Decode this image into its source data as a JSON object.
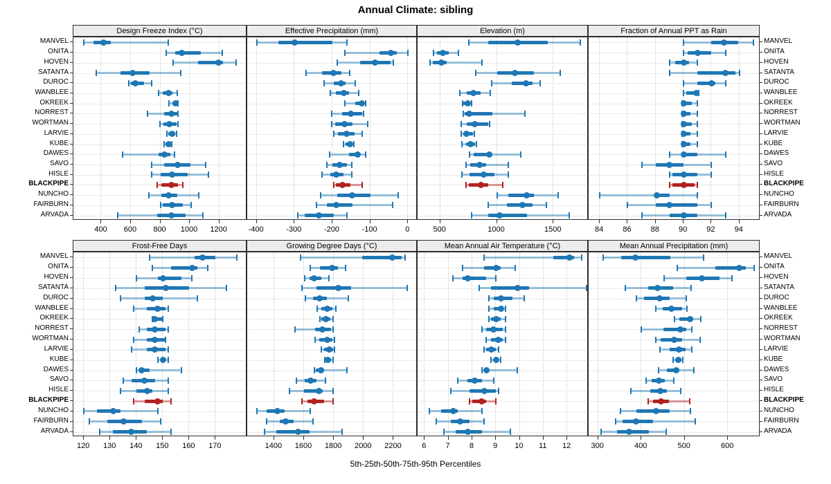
{
  "title": "Annual Climate: sibling",
  "caption": "5th-25th-50th-75th-95th Percentiles",
  "colors": {
    "series": "#1f77b4",
    "highlight": "#b22222",
    "grid": "#c9c9c9",
    "strip_bg": "#ececec",
    "border": "#2b2b2b"
  },
  "stations": [
    "MANVEL",
    "ONITA",
    "HOVEN",
    "SATANTA",
    "DUROC",
    "WANBLEE",
    "OKREEK",
    "NORREST",
    "WORTMAN",
    "LARVIE",
    "KUBE",
    "DAWES",
    "SAVO",
    "HISLE",
    "BLACKPIPE",
    "NUNCHO",
    "FAIRBURN",
    "ARVADA"
  ],
  "highlight_station": "BLACKPIPE",
  "chart_data": [
    {
      "type": "interval",
      "title": "Design Freeze Index (°C)",
      "percentiles": [
        5,
        25,
        50,
        75,
        95
      ],
      "xlim": [
        210,
        1390
      ],
      "ticks": [
        400,
        600,
        800,
        1000,
        1200
      ],
      "values": [
        [
          282,
          345,
          413,
          463,
          855
        ],
        [
          839,
          902,
          946,
          1074,
          1220
        ],
        [
          889,
          1056,
          1194,
          1224,
          1315
        ],
        [
          366,
          530,
          612,
          729,
          938
        ],
        [
          585,
          600,
          629,
          690,
          740
        ],
        [
          790,
          815,
          857,
          880,
          916
        ],
        [
          858,
          882,
          902,
          917,
          922
        ],
        [
          711,
          824,
          874,
          913,
          918
        ],
        [
          797,
          820,
          863,
          910,
          921
        ],
        [
          847,
          856,
          878,
          902,
          910
        ],
        [
          828,
          835,
          855,
          871,
          878
        ],
        [
          546,
          786,
          828,
          868,
          897
        ],
        [
          740,
          824,
          918,
          1004,
          1106
        ],
        [
          740,
          800,
          878,
          988,
          1126
        ],
        [
          781,
          808,
          874,
          918,
          952
        ],
        [
          722,
          808,
          858,
          913,
          1063
        ],
        [
          803,
          816,
          882,
          954,
          1007
        ],
        [
          510,
          781,
          874,
          973,
          1090
        ]
      ]
    },
    {
      "type": "interval",
      "title": "Effective Precipitation (mm)",
      "percentiles": [
        5,
        25,
        50,
        75,
        95
      ],
      "xlim": [
        -425,
        25
      ],
      "ticks": [
        -400,
        -300,
        -200,
        -100,
        0
      ],
      "values": [
        [
          -400,
          -343,
          -299,
          -200,
          -161
        ],
        [
          -167,
          -76,
          -45,
          -30,
          0
        ],
        [
          -188,
          -126,
          -87,
          -47,
          -39
        ],
        [
          -269,
          -228,
          -197,
          -177,
          -154
        ],
        [
          -222,
          -196,
          -177,
          -165,
          -139
        ],
        [
          -206,
          -190,
          -170,
          -156,
          -130
        ],
        [
          -167,
          -140,
          -123,
          -116,
          -113
        ],
        [
          -202,
          -174,
          -151,
          -122,
          -117
        ],
        [
          -202,
          -193,
          -168,
          -147,
          -107
        ],
        [
          -196,
          -185,
          -163,
          -142,
          -121
        ],
        [
          -171,
          -166,
          -154,
          -147,
          -144
        ],
        [
          -208,
          -156,
          -133,
          -126,
          -112
        ],
        [
          -214,
          -200,
          -180,
          -162,
          -148
        ],
        [
          -228,
          -205,
          -190,
          -171,
          -148
        ],
        [
          -196,
          -191,
          -173,
          -153,
          -121
        ],
        [
          -232,
          -187,
          -147,
          -100,
          -26
        ],
        [
          -242,
          -215,
          -190,
          -147,
          -40
        ],
        [
          -291,
          -273,
          -236,
          -196,
          -161
        ]
      ]
    },
    {
      "type": "interval",
      "title": "Elevation (m)",
      "percentiles": [
        5,
        25,
        50,
        75,
        95
      ],
      "xlim": [
        300,
        1810
      ],
      "ticks": [
        500,
        1000,
        1500
      ],
      "values": [
        [
          751,
          925,
          1186,
          1449,
          1735
        ],
        [
          443,
          470,
          524,
          575,
          662
        ],
        [
          409,
          433,
          508,
          559,
          868
        ],
        [
          812,
          1000,
          1156,
          1328,
          1557
        ],
        [
          955,
          1132,
          1259,
          1314,
          1385
        ],
        [
          670,
          731,
          793,
          854,
          943
        ],
        [
          700,
          706,
          743,
          767,
          777
        ],
        [
          702,
          713,
          757,
          963,
          1247
        ],
        [
          686,
          737,
          804,
          923,
          933
        ],
        [
          686,
          706,
          730,
          790,
          804
        ],
        [
          692,
          727,
          770,
          808,
          820
        ],
        [
          760,
          795,
          930,
          962,
          1208
        ],
        [
          727,
          763,
          850,
          905,
          1103
        ],
        [
          692,
          757,
          885,
          980,
          1101
        ],
        [
          727,
          753,
          858,
          925,
          1053
        ],
        [
          1002,
          1103,
          1263,
          1330,
          1542
        ],
        [
          925,
          1087,
          1229,
          1316,
          1435
        ],
        [
          777,
          921,
          1026,
          1265,
          1639
        ]
      ]
    },
    {
      "type": "interval",
      "title": "Fraction of Annual PPT as Rain",
      "percentiles": [
        5,
        25,
        50,
        75,
        95
      ],
      "xlim": [
        83.2,
        95.5
      ],
      "ticks": [
        84,
        86,
        88,
        90,
        92,
        94
      ],
      "values": [
        [
          90.0,
          92.0,
          92.9,
          93.9,
          95.0
        ],
        [
          90.0,
          90.3,
          91.0,
          92.0,
          93.0
        ],
        [
          89.0,
          89.4,
          90.0,
          90.4,
          91.0
        ],
        [
          89.0,
          91.0,
          93.0,
          93.7,
          94.0
        ],
        [
          90.0,
          91.0,
          92.0,
          92.3,
          93.0
        ],
        [
          90.0,
          90.2,
          90.9,
          91.0,
          91.1
        ],
        [
          89.9,
          90.0,
          90.0,
          90.6,
          91.0
        ],
        [
          89.9,
          90.0,
          90.0,
          90.5,
          91.0
        ],
        [
          89.9,
          90.0,
          90.0,
          90.6,
          91.0
        ],
        [
          89.9,
          90.0,
          90.0,
          90.5,
          91.0
        ],
        [
          89.9,
          90.0,
          90.0,
          90.5,
          91.0
        ],
        [
          89.0,
          89.9,
          90.0,
          91.0,
          93.0
        ],
        [
          87.0,
          88.0,
          89.0,
          90.0,
          92.0
        ],
        [
          89.0,
          89.2,
          90.0,
          91.0,
          92.0
        ],
        [
          89.0,
          89.2,
          90.0,
          90.8,
          91.0
        ],
        [
          84.0,
          88.0,
          88.1,
          89.0,
          91.0
        ],
        [
          86.0,
          88.0,
          89.0,
          91.0,
          92.0
        ],
        [
          87.0,
          89.0,
          90.0,
          91.0,
          93.0
        ]
      ]
    },
    {
      "type": "interval",
      "title": "Frost-Free Days",
      "percentiles": [
        5,
        25,
        50,
        75,
        95
      ],
      "xlim": [
        116,
        182
      ],
      "ticks": [
        120,
        130,
        140,
        150,
        160,
        170
      ],
      "values": [
        [
          145,
          162,
          165,
          170,
          178
        ],
        [
          146,
          153,
          161,
          163,
          167
        ],
        [
          140,
          148,
          150,
          157,
          161
        ],
        [
          132,
          143,
          151,
          160,
          174
        ],
        [
          134,
          143,
          146,
          150,
          163
        ],
        [
          139,
          144,
          148,
          151,
          152
        ],
        [
          146,
          146,
          147,
          150,
          150
        ],
        [
          141,
          144,
          147,
          151,
          152
        ],
        [
          139,
          144,
          147,
          151,
          151
        ],
        [
          138,
          144,
          147,
          151,
          152
        ],
        [
          148,
          149,
          150,
          151,
          152
        ],
        [
          140,
          141,
          142,
          145,
          157
        ],
        [
          135,
          138,
          143,
          147,
          152
        ],
        [
          134,
          140,
          144,
          146,
          152
        ],
        [
          139,
          143,
          148,
          150,
          153
        ],
        [
          120,
          125,
          131,
          134,
          148
        ],
        [
          122,
          129,
          135,
          142,
          149
        ],
        [
          126,
          131,
          138,
          144,
          153
        ]
      ]
    },
    {
      "type": "interval",
      "title": "Growing Degree Days (°C)",
      "percentiles": [
        5,
        25,
        50,
        75,
        95
      ],
      "xlim": [
        1220,
        2360
      ],
      "ticks": [
        1400,
        1600,
        1800,
        2000,
        2200
      ],
      "values": [
        [
          1575,
          1991,
          2192,
          2254,
          2275
        ],
        [
          1642,
          1708,
          1788,
          1826,
          1877
        ],
        [
          1606,
          1637,
          1668,
          1718,
          1769
        ],
        [
          1585,
          1683,
          1829,
          1914,
          2292
        ],
        [
          1611,
          1662,
          1703,
          1754,
          1898
        ],
        [
          1688,
          1718,
          1754,
          1791,
          1815
        ],
        [
          1708,
          1714,
          1745,
          1775,
          1795
        ],
        [
          1538,
          1672,
          1723,
          1780,
          1795
        ],
        [
          1672,
          1703,
          1754,
          1791,
          1806
        ],
        [
          1718,
          1734,
          1769,
          1795,
          1806
        ],
        [
          1738,
          1745,
          1761,
          1783,
          1795
        ],
        [
          1668,
          1677,
          1714,
          1734,
          1888
        ],
        [
          1549,
          1606,
          1642,
          1683,
          1745
        ],
        [
          1503,
          1600,
          1698,
          1723,
          1795
        ],
        [
          1585,
          1622,
          1668,
          1734,
          1795
        ],
        [
          1283,
          1349,
          1422,
          1472,
          1642
        ],
        [
          1349,
          1437,
          1477,
          1529,
          1662
        ],
        [
          1334,
          1415,
          1560,
          1637,
          1857
        ]
      ]
    },
    {
      "type": "interval",
      "title": "Mean Annual Air Temperature (°C)",
      "percentiles": [
        5,
        25,
        50,
        75,
        95
      ],
      "xlim": [
        5.7,
        12.9
      ],
      "ticks": [
        6,
        7,
        8,
        9,
        10,
        11,
        12
      ],
      "values": [
        [
          8.5,
          11.4,
          12.1,
          12.3,
          12.6
        ],
        [
          7.6,
          8.5,
          9.0,
          9.2,
          9.8
        ],
        [
          7.2,
          7.6,
          7.8,
          8.6,
          9.0
        ],
        [
          8.3,
          8.8,
          9.9,
          10.4,
          12.8
        ],
        [
          8.7,
          8.9,
          9.2,
          9.7,
          10.2
        ],
        [
          8.7,
          8.9,
          9.2,
          9.3,
          9.4
        ],
        [
          8.7,
          8.8,
          9.0,
          9.2,
          9.4
        ],
        [
          8.4,
          8.6,
          8.9,
          9.3,
          9.4
        ],
        [
          8.6,
          8.8,
          9.1,
          9.3,
          9.4
        ],
        [
          8.5,
          8.6,
          8.8,
          9.0,
          9.1
        ],
        [
          8.8,
          8.9,
          9.0,
          9.1,
          9.2
        ],
        [
          8.4,
          8.5,
          8.6,
          8.7,
          9.9
        ],
        [
          7.4,
          7.8,
          8.1,
          8.4,
          8.9
        ],
        [
          7.1,
          7.9,
          8.5,
          9.0,
          9.1
        ],
        [
          7.9,
          8.0,
          8.4,
          8.6,
          9.0
        ],
        [
          6.2,
          6.7,
          7.2,
          7.4,
          8.4
        ],
        [
          6.5,
          7.1,
          7.5,
          7.9,
          8.5
        ],
        [
          6.8,
          7.3,
          7.8,
          8.4,
          9.6
        ]
      ]
    },
    {
      "type": "interval",
      "title": "Mean Annual Precipitation (mm)",
      "percentiles": [
        5,
        25,
        50,
        75,
        95
      ],
      "xlim": [
        278,
        675
      ],
      "ticks": [
        300,
        400,
        500,
        600
      ],
      "values": [
        [
          311,
          354,
          386,
          467,
          544
        ],
        [
          483,
          571,
          626,
          642,
          660
        ],
        [
          453,
          504,
          540,
          580,
          610
        ],
        [
          363,
          415,
          437,
          474,
          515
        ],
        [
          388,
          406,
          442,
          465,
          503
        ],
        [
          434,
          449,
          470,
          494,
          506
        ],
        [
          477,
          488,
          512,
          520,
          537
        ],
        [
          399,
          451,
          490,
          503,
          517
        ],
        [
          434,
          445,
          476,
          494,
          535
        ],
        [
          443,
          466,
          487,
          502,
          516
        ],
        [
          473,
          478,
          486,
          493,
          496
        ],
        [
          439,
          459,
          480,
          487,
          522
        ],
        [
          411,
          423,
          441,
          454,
          475
        ],
        [
          375,
          420,
          443,
          459,
          491
        ],
        [
          415,
          427,
          445,
          464,
          512
        ],
        [
          352,
          389,
          434,
          466,
          514
        ],
        [
          341,
          357,
          388,
          427,
          525
        ],
        [
          307,
          343,
          372,
          418,
          457
        ]
      ]
    }
  ]
}
